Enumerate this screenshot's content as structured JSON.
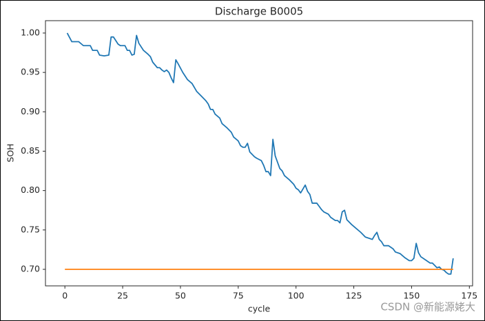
{
  "chart_data": {
    "type": "line",
    "title": "Discharge B0005",
    "xlabel": "cycle",
    "ylabel": "SOH",
    "watermark": "CSDN @新能源姥大",
    "xlim": [
      -8.4,
      176.4
    ],
    "ylim": [
      0.679,
      1.0157
    ],
    "xticks": [
      0,
      25,
      50,
      75,
      100,
      125,
      150,
      175
    ],
    "yticks": [
      {
        "value": 0.7,
        "label": "0.70"
      },
      0.75,
      {
        "value": 0.8,
        "label": "0.80"
      },
      0.85,
      {
        "value": 0.9,
        "label": "0.90"
      },
      0.95,
      {
        "value": 1.0,
        "label": "1.00"
      }
    ],
    "grid": false,
    "series": [
      {
        "color": "#1f77b4",
        "x": [
          1,
          3,
          6,
          8,
          11,
          12,
          14,
          15,
          17,
          19,
          20,
          21,
          23,
          24,
          26,
          27,
          28,
          29,
          30,
          31,
          32,
          34,
          36,
          37,
          38,
          40,
          41,
          42,
          43,
          44,
          45,
          46,
          47,
          48,
          49,
          51,
          53,
          55,
          57,
          59,
          61,
          62,
          63,
          64,
          65,
          67,
          68,
          70,
          72,
          73,
          75,
          76,
          77,
          78,
          79,
          80,
          82,
          83,
          85,
          86,
          87,
          88,
          89,
          90,
          91,
          93,
          94,
          95,
          97,
          98,
          99,
          100,
          101,
          102,
          104,
          105,
          106,
          107,
          109,
          110,
          111,
          112,
          114,
          115,
          117,
          118,
          119,
          120,
          121,
          122,
          124,
          126,
          128,
          130,
          131,
          132,
          133,
          134,
          135,
          136,
          137,
          138,
          140,
          142,
          143,
          145,
          147,
          149,
          150,
          151,
          152,
          153,
          154,
          156,
          158,
          159,
          160,
          161,
          162,
          163,
          164,
          165,
          166,
          167,
          168
        ],
        "values": [
          1.0,
          0.989,
          0.989,
          0.984,
          0.984,
          0.978,
          0.978,
          0.972,
          0.971,
          0.972,
          0.995,
          0.995,
          0.986,
          0.984,
          0.984,
          0.978,
          0.978,
          0.972,
          0.973,
          0.997,
          0.987,
          0.978,
          0.973,
          0.97,
          0.963,
          0.956,
          0.956,
          0.953,
          0.951,
          0.953,
          0.95,
          0.943,
          0.937,
          0.966,
          0.961,
          0.95,
          0.941,
          0.936,
          0.926,
          0.92,
          0.914,
          0.91,
          0.903,
          0.903,
          0.897,
          0.892,
          0.885,
          0.88,
          0.874,
          0.868,
          0.863,
          0.857,
          0.855,
          0.855,
          0.86,
          0.849,
          0.843,
          0.841,
          0.838,
          0.832,
          0.824,
          0.824,
          0.819,
          0.865,
          0.844,
          0.828,
          0.825,
          0.819,
          0.814,
          0.811,
          0.808,
          0.803,
          0.801,
          0.797,
          0.807,
          0.799,
          0.795,
          0.784,
          0.784,
          0.78,
          0.776,
          0.773,
          0.77,
          0.766,
          0.762,
          0.762,
          0.759,
          0.773,
          0.775,
          0.763,
          0.757,
          0.752,
          0.747,
          0.741,
          0.74,
          0.739,
          0.738,
          0.743,
          0.747,
          0.738,
          0.735,
          0.73,
          0.73,
          0.726,
          0.722,
          0.72,
          0.715,
          0.711,
          0.711,
          0.714,
          0.733,
          0.721,
          0.716,
          0.712,
          0.708,
          0.708,
          0.705,
          0.702,
          0.703,
          0.7,
          0.699,
          0.696,
          0.694,
          0.694,
          0.714
        ]
      },
      {
        "color": "#ff7f0e",
        "x": [
          0,
          168
        ],
        "values": [
          0.7,
          0.7
        ]
      }
    ]
  }
}
